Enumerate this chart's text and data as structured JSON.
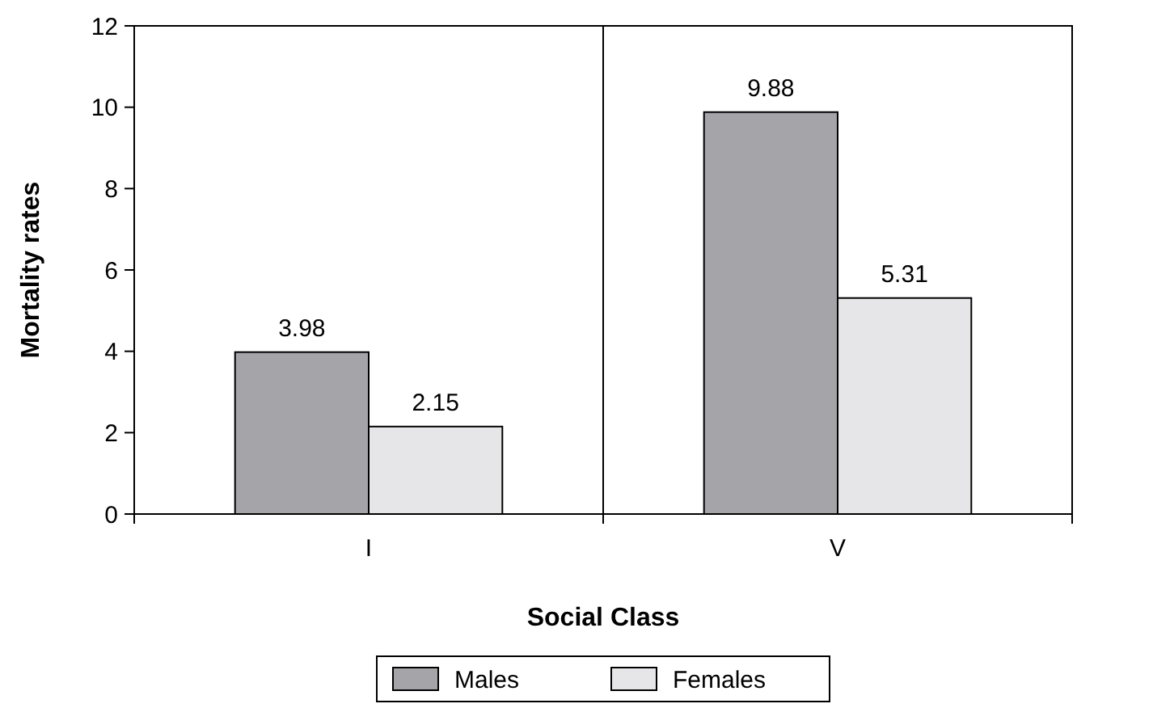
{
  "chart_data": {
    "type": "bar",
    "xlabel": "Social Class",
    "ylabel": "Mortality rates",
    "categories": [
      "I",
      "V"
    ],
    "series": [
      {
        "name": "Males",
        "color": "#a5a5a9",
        "values": [
          3.98,
          9.88
        ]
      },
      {
        "name": "Females",
        "color": "#e6e6e8",
        "values": [
          2.15,
          5.31
        ]
      }
    ],
    "ylim": [
      0,
      12
    ],
    "yticks": [
      0,
      2,
      4,
      6,
      8,
      10,
      12
    ],
    "grid": "x",
    "legend": "bottom",
    "data_labels": true
  }
}
